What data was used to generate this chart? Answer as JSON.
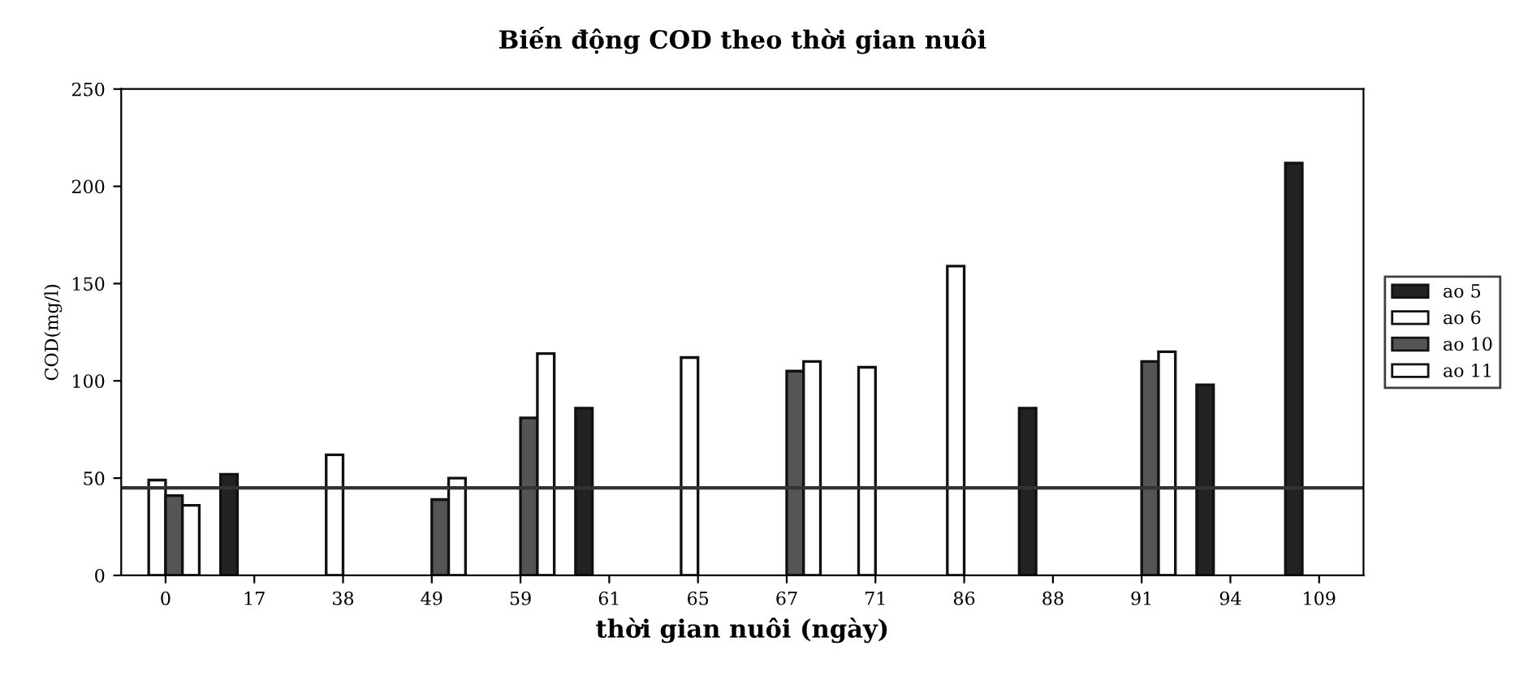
{
  "chart_data": {
    "type": "bar",
    "title": "Biến động COD theo thời gian nuôi",
    "xlabel": "thời gian nuôi (ngày)",
    "ylabel": "COD(mg/l)",
    "categories": [
      "0",
      "17",
      "38",
      "49",
      "59",
      "61",
      "65",
      "67",
      "71",
      "86",
      "88",
      "91",
      "94",
      "109"
    ],
    "series": [
      {
        "name": "ao 5",
        "color": "#222222",
        "values": [
          null,
          52,
          null,
          null,
          null,
          86,
          null,
          null,
          null,
          null,
          86,
          null,
          98,
          212
        ]
      },
      {
        "name": "ao 6",
        "color": "#ffffff",
        "values": [
          49,
          null,
          62,
          null,
          null,
          null,
          112,
          null,
          107,
          159,
          null,
          null,
          null,
          null
        ]
      },
      {
        "name": "ao 10",
        "color": "#555555",
        "values": [
          41,
          null,
          null,
          39,
          81,
          null,
          null,
          105,
          null,
          null,
          null,
          110,
          null,
          null
        ]
      },
      {
        "name": "ao 11",
        "color": "#ffffff",
        "values": [
          36,
          null,
          null,
          50,
          114,
          null,
          null,
          110,
          null,
          null,
          null,
          115,
          null,
          null
        ]
      }
    ],
    "ylim": [
      0,
      250
    ],
    "yticks": [
      0,
      50,
      100,
      150,
      200,
      250
    ],
    "ref_lines": [
      {
        "axis": "y",
        "value": 45,
        "color": "#333333"
      }
    ],
    "grid": false,
    "legend": "right"
  }
}
